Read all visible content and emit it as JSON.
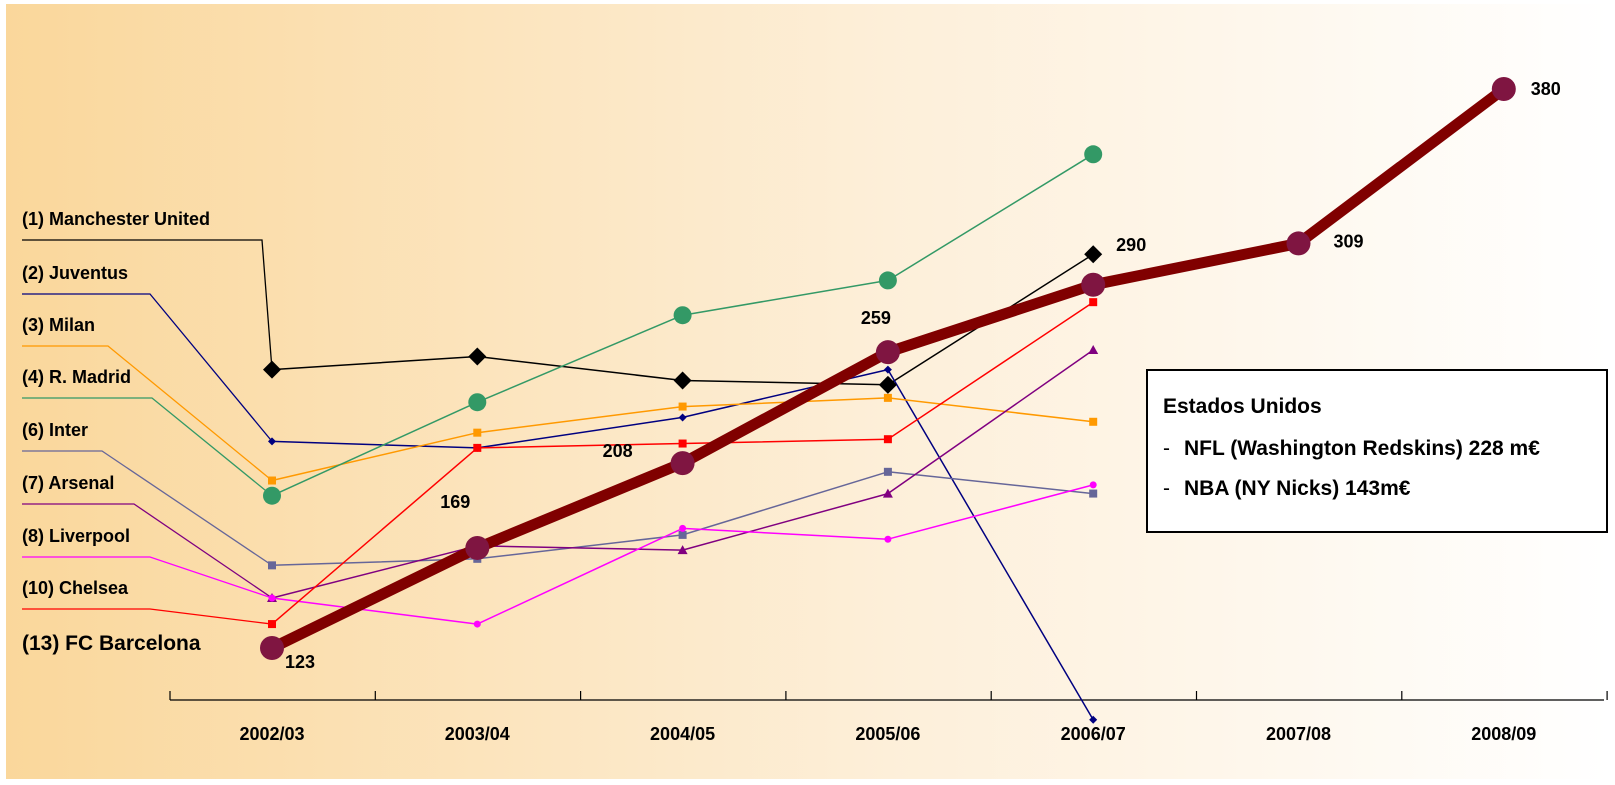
{
  "chart_data": {
    "type": "line",
    "categories": [
      "2002/03",
      "2003/04",
      "2004/05",
      "2005/06",
      "2006/07",
      "2007/08",
      "2008/09"
    ],
    "series": [
      {
        "name": "(1) Manchester United",
        "color": "#000000",
        "marker": "diamond",
        "marker_size": 9,
        "line_width": 1.5,
        "values": [
          251,
          257,
          246,
          244,
          304,
          null,
          null
        ]
      },
      {
        "name": "(2) Juventus",
        "color": "#000080",
        "marker": "diamond",
        "marker_size": 4,
        "line_width": 1.5,
        "values": [
          218,
          215,
          229,
          251,
          90,
          null,
          null
        ]
      },
      {
        "name": "(3) Milan",
        "color": "#FF9900",
        "marker": "square",
        "marker_size": 4,
        "line_width": 1.5,
        "values": [
          200,
          222,
          234,
          238,
          227,
          null,
          null
        ]
      },
      {
        "name": "(4) R. Madrid",
        "color": "#339966",
        "marker": "circle",
        "marker_size": 9,
        "line_width": 1.5,
        "values": [
          193,
          236,
          276,
          292,
          350,
          null,
          null
        ]
      },
      {
        "name": "(6) Inter",
        "color": "#666699",
        "marker": "square",
        "marker_size": 4,
        "line_width": 1.5,
        "values": [
          161,
          164,
          175,
          204,
          194,
          null,
          null
        ]
      },
      {
        "name": "(7) Arsenal",
        "color": "#800080",
        "marker": "triangle",
        "marker_size": 5,
        "line_width": 1.5,
        "values": [
          146,
          170,
          168,
          194,
          260,
          null,
          null
        ]
      },
      {
        "name": "(8) Liverpool",
        "color": "#FF00FF",
        "marker": "circle",
        "marker_size": 3.5,
        "line_width": 1.5,
        "values": [
          146,
          134,
          178,
          173,
          198,
          null,
          null
        ]
      },
      {
        "name": "(10) Chelsea",
        "color": "#FF0000",
        "marker": "square",
        "marker_size": 4,
        "line_width": 1.5,
        "values": [
          134,
          215,
          217,
          219,
          282,
          null,
          null
        ]
      },
      {
        "name": "(13) FC Barcelona",
        "color": "#800000",
        "marker": "circle",
        "marker_size": 12,
        "marker_color": "#7F1541",
        "line_width": 11,
        "values": [
          123,
          169,
          208,
          259,
          290,
          309,
          380
        ],
        "data_labels": [
          "123",
          "169",
          "208",
          "259",
          "290",
          "309",
          "380"
        ]
      }
    ],
    "ylim": [
      100,
      400
    ],
    "info_box": {
      "title": "Estados Unidos",
      "lines": [
        "NFL (Washington Redskins) 228 m€",
        "NBA (NY Nicks) 143m€"
      ]
    }
  }
}
